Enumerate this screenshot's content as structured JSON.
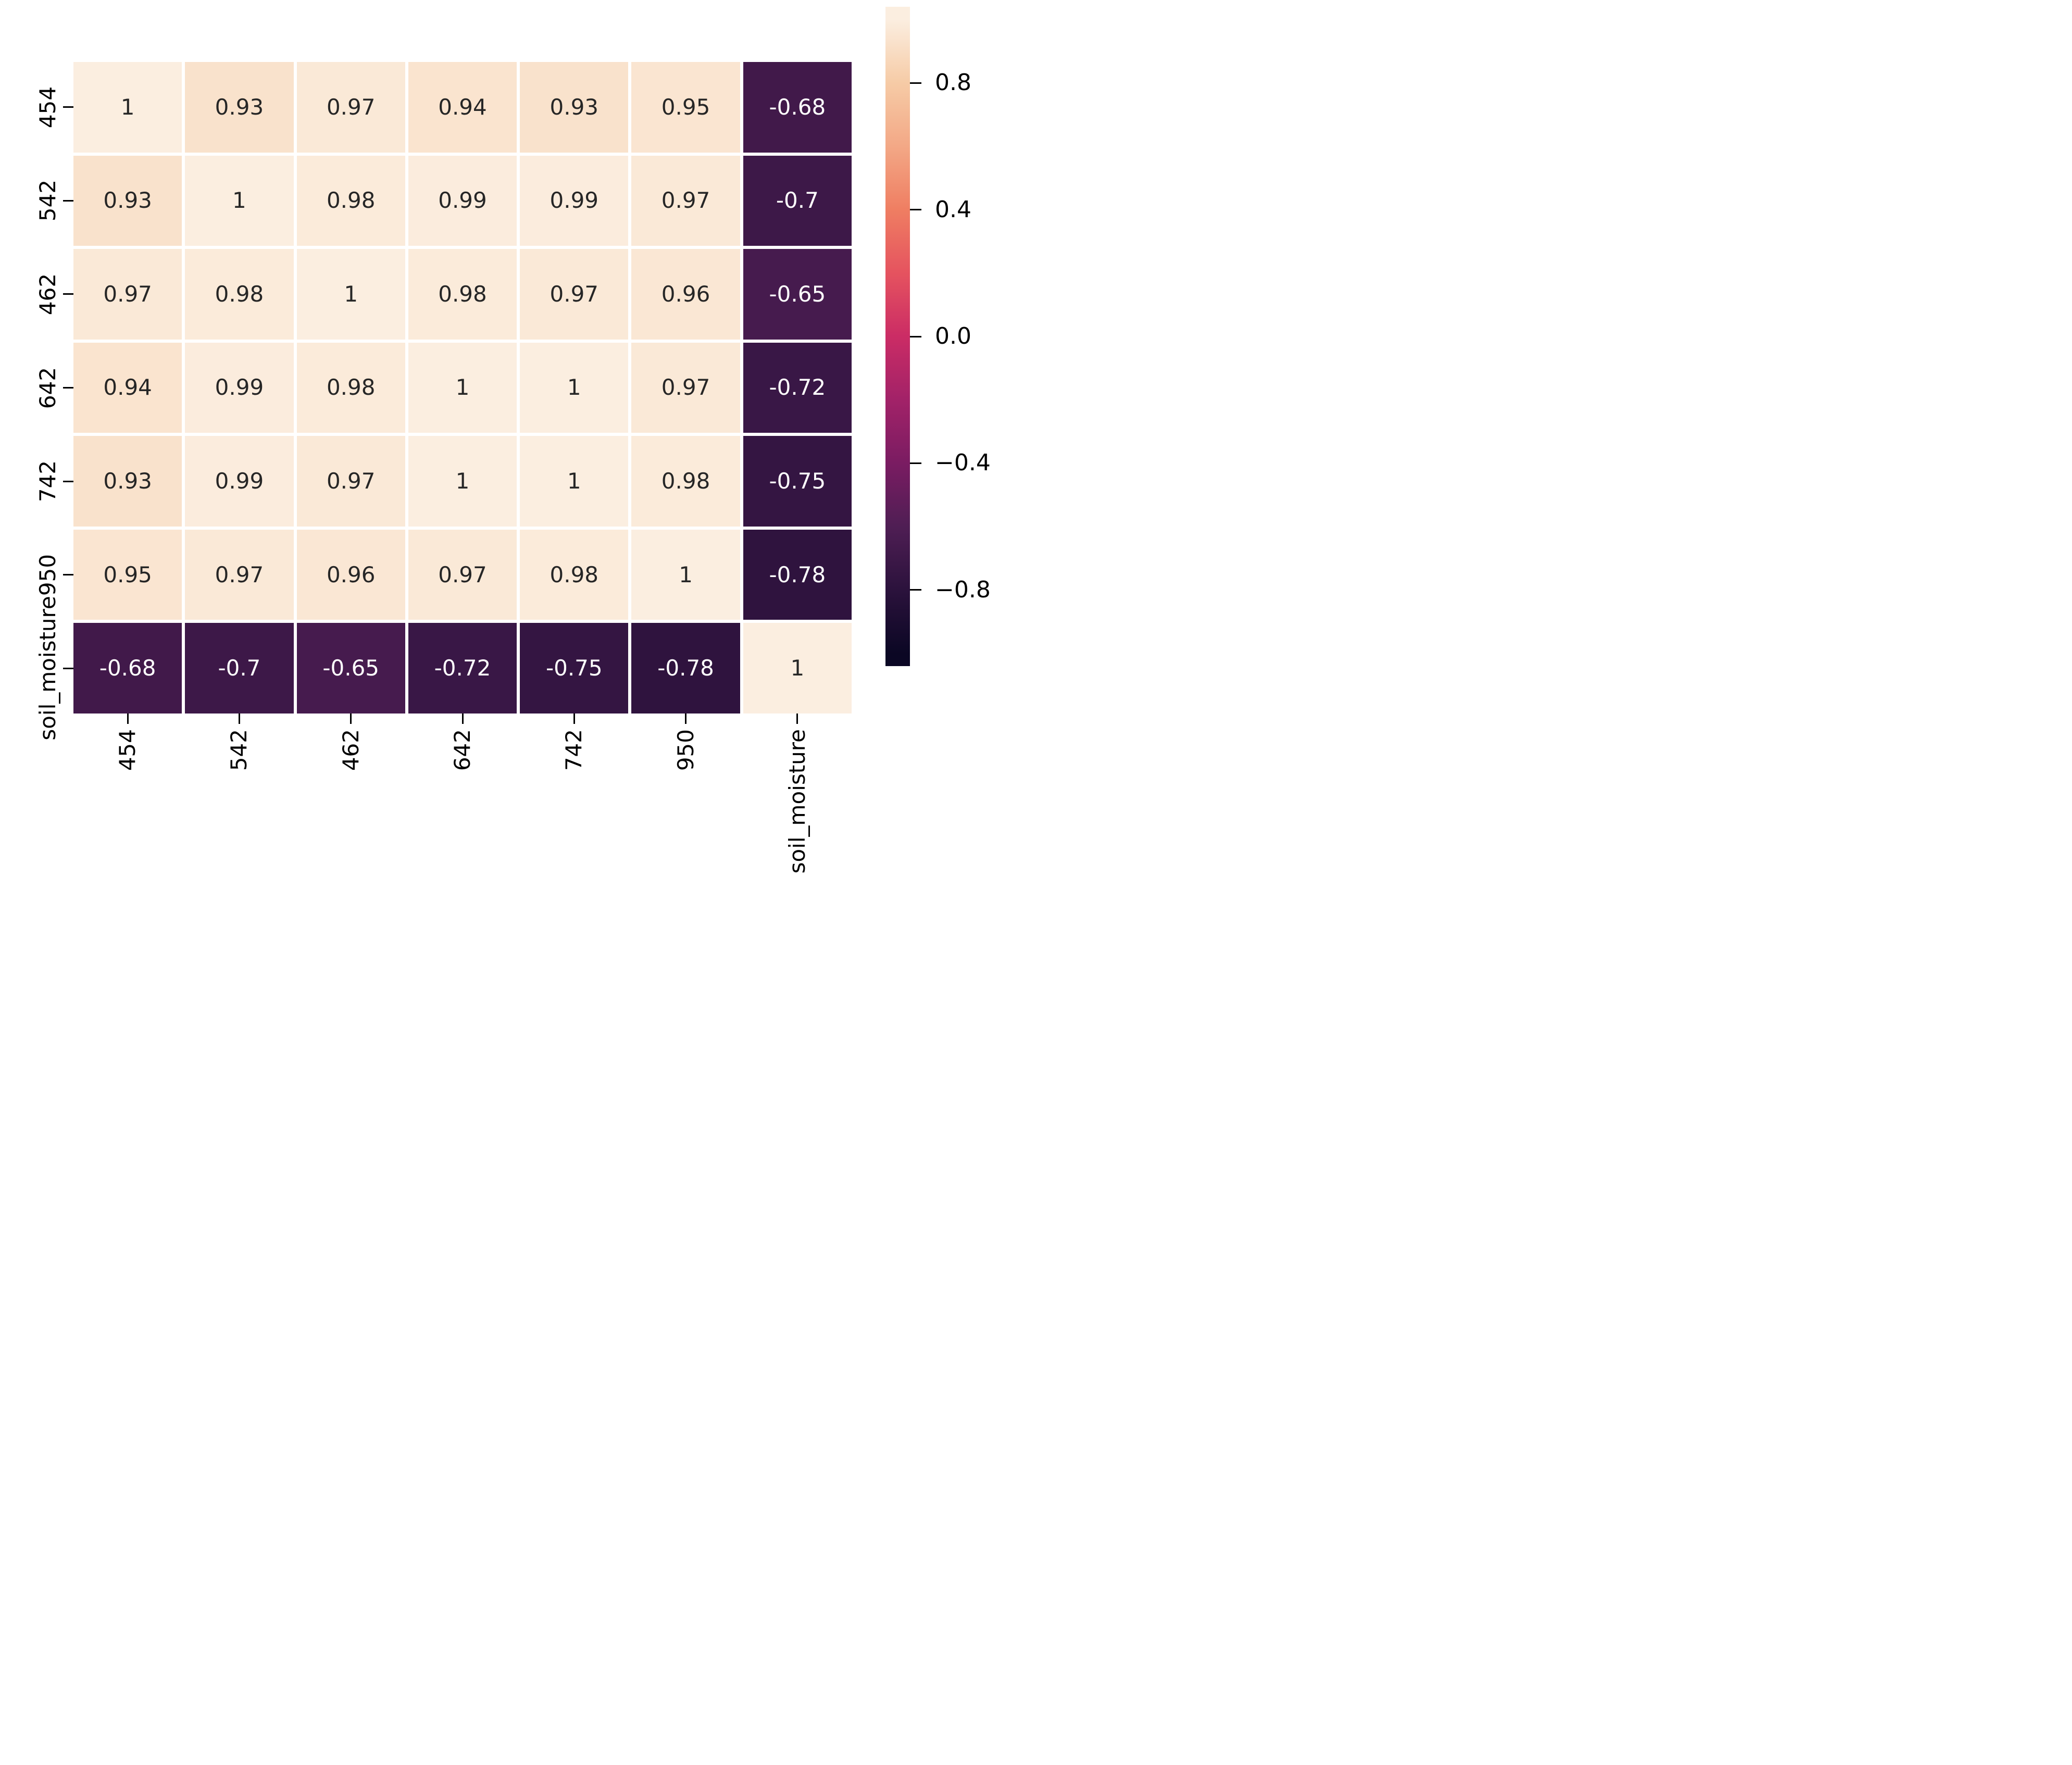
{
  "chart_data": {
    "type": "heatmap",
    "title": "",
    "xlabel": "",
    "ylabel": "",
    "labels": [
      "454",
      "542",
      "462",
      "642",
      "742",
      "950",
      "soil_moisture"
    ],
    "matrix": [
      [
        1,
        0.93,
        0.97,
        0.94,
        0.93,
        0.95,
        -0.68
      ],
      [
        0.93,
        1,
        0.98,
        0.99,
        0.99,
        0.97,
        -0.7
      ],
      [
        0.97,
        0.98,
        1,
        0.98,
        0.97,
        0.96,
        -0.65
      ],
      [
        0.94,
        0.99,
        0.98,
        1,
        1,
        0.97,
        -0.72
      ],
      [
        0.93,
        0.99,
        0.97,
        1,
        1,
        0.98,
        -0.75
      ],
      [
        0.95,
        0.97,
        0.96,
        0.97,
        0.98,
        1,
        -0.78
      ],
      [
        -0.68,
        -0.7,
        -0.65,
        -0.72,
        -0.75,
        -0.78,
        1
      ]
    ],
    "annotations": [
      [
        "1",
        "0.93",
        "0.97",
        "0.94",
        "0.93",
        "0.95",
        "-0.68"
      ],
      [
        "0.93",
        "1",
        "0.98",
        "0.99",
        "0.99",
        "0.97",
        "-0.7"
      ],
      [
        "0.97",
        "0.98",
        "1",
        "0.98",
        "0.97",
        "0.96",
        "-0.65"
      ],
      [
        "0.94",
        "0.99",
        "0.98",
        "1",
        "1",
        "0.97",
        "-0.72"
      ],
      [
        "0.93",
        "0.99",
        "0.97",
        "1",
        "1",
        "0.98",
        "-0.75"
      ],
      [
        "0.95",
        "0.97",
        "0.96",
        "0.97",
        "0.98",
        "1",
        "-0.78"
      ],
      [
        "-0.68",
        "-0.7",
        "-0.65",
        "-0.72",
        "-0.75",
        "-0.78",
        "1"
      ]
    ],
    "colormap_stops": [
      {
        "value": 1.0,
        "color": "#fbeee0"
      },
      {
        "value": 0.8,
        "color": "#f6cba6"
      },
      {
        "value": 0.6,
        "color": "#f3a886"
      },
      {
        "value": 0.4,
        "color": "#ef7e62"
      },
      {
        "value": 0.2,
        "color": "#e5535f"
      },
      {
        "value": 0.0,
        "color": "#cb2c65"
      },
      {
        "value": -0.2,
        "color": "#a22268"
      },
      {
        "value": -0.4,
        "color": "#7a1c62"
      },
      {
        "value": -0.6,
        "color": "#4f1e54"
      },
      {
        "value": -0.8,
        "color": "#2b123c"
      },
      {
        "value": -1.0,
        "color": "#0b0724"
      }
    ],
    "colorbar": {
      "ticks": [
        {
          "label": "0.8",
          "value": 0.8
        },
        {
          "label": "0.4",
          "value": 0.4
        },
        {
          "label": "0.0",
          "value": 0.0
        },
        {
          "label": "−0.4",
          "value": -0.4
        },
        {
          "label": "−0.8",
          "value": -0.8
        }
      ],
      "vmin": -1.04,
      "vmax": 1.04,
      "legend_position": "right"
    },
    "grid": "off",
    "text_on_light": "#262626",
    "text_on_dark": "#ffffff",
    "background_color": "#ffffff",
    "tick_color": "#000000"
  }
}
